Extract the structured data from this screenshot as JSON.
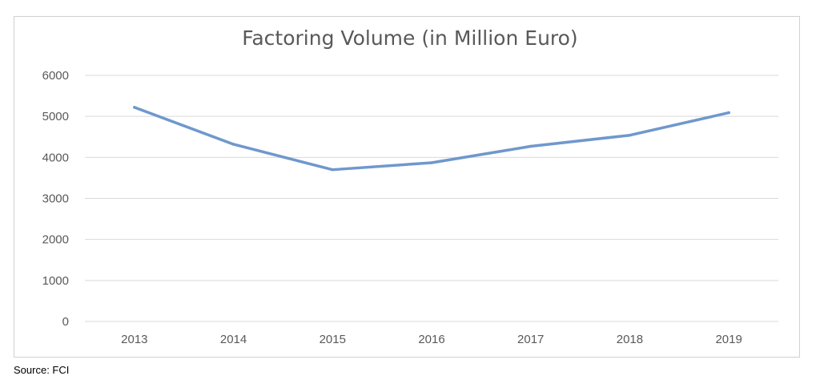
{
  "chart_data": {
    "type": "line",
    "title": "Factoring Volume (in Million Euro)",
    "xlabel": "",
    "ylabel": "",
    "categories": [
      "2013",
      "2014",
      "2015",
      "2016",
      "2017",
      "2018",
      "2019"
    ],
    "series": [
      {
        "values": [
          5220,
          4320,
          3700,
          3870,
          4270,
          4540,
          5090
        ],
        "color": "#6f98cc"
      }
    ],
    "ylim": [
      0,
      6000
    ],
    "yticks": [
      "0",
      "1000",
      "2000",
      "3000",
      "4000",
      "5000",
      "6000"
    ],
    "grid": true,
    "legend": "none"
  },
  "colors": {
    "gridline": "#d9d9d9",
    "axis_text": "#595959",
    "line": "#6f98cc"
  },
  "source": "Source: FCI"
}
